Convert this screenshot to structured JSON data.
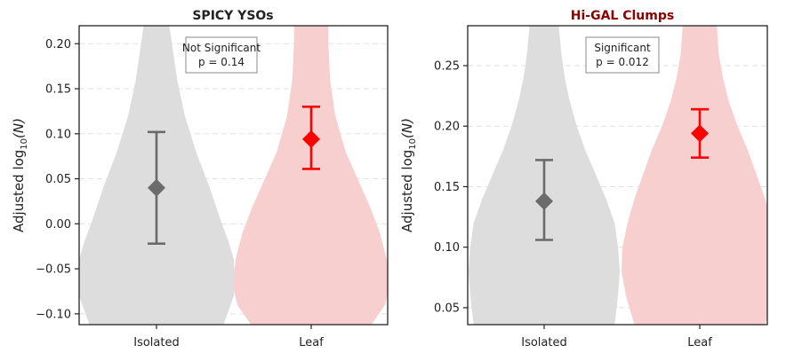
{
  "chart_data": [
    {
      "type": "violin",
      "title": "SPICY YSOs",
      "title_color": "#222222",
      "ylabel_main": "Adjusted log",
      "ylabel_sub": "10",
      "ylabel_arg": "(N)",
      "categories": [
        "Isolated",
        "Leaf"
      ],
      "ylim": [
        -0.112,
        0.22
      ],
      "yticks": [
        -0.1,
        -0.05,
        0.0,
        0.05,
        0.1,
        0.15,
        0.2
      ],
      "ytick_labels": [
        "−0.10",
        "−0.05",
        "0.00",
        "0.05",
        "0.10",
        "0.15",
        "0.20"
      ],
      "grid": true,
      "annotation": [
        "Not Significant",
        "p = 0.14"
      ],
      "series": [
        {
          "category": "Isolated",
          "color": "#dddddd",
          "marker_color": "#6b6b6b",
          "mean": 0.04,
          "ci": [
            -0.022,
            0.102
          ],
          "violin_profile": [
            [
              -0.112,
              0.39
            ],
            [
              -0.08,
              0.45
            ],
            [
              -0.06,
              0.455
            ],
            [
              -0.04,
              0.45
            ],
            [
              -0.02,
              0.42
            ],
            [
              0.0,
              0.38
            ],
            [
              0.04,
              0.31
            ],
            [
              0.08,
              0.23
            ],
            [
              0.12,
              0.165
            ],
            [
              0.16,
              0.12
            ],
            [
              0.2,
              0.09
            ],
            [
              0.22,
              0.075
            ]
          ]
        },
        {
          "category": "Leaf",
          "color": "#f8cfcf",
          "marker_color": "#ff0000",
          "mean": 0.094,
          "ci": [
            0.061,
            0.13
          ],
          "violin_profile": [
            [
              -0.112,
              0.35
            ],
            [
              -0.09,
              0.43
            ],
            [
              -0.07,
              0.455
            ],
            [
              -0.04,
              0.44
            ],
            [
              -0.01,
              0.4
            ],
            [
              0.02,
              0.34
            ],
            [
              0.05,
              0.27
            ],
            [
              0.08,
              0.2
            ],
            [
              0.12,
              0.14
            ],
            [
              0.16,
              0.11
            ],
            [
              0.2,
              0.1
            ],
            [
              0.22,
              0.1
            ]
          ]
        }
      ]
    },
    {
      "type": "violin",
      "title": "Hi-GAL Clumps",
      "title_color": "#8b0000",
      "ylabel_main": "Adjusted log",
      "ylabel_sub": "10",
      "ylabel_arg": "(N)",
      "categories": [
        "Isolated",
        "Leaf"
      ],
      "ylim": [
        0.036,
        0.283
      ],
      "yticks": [
        0.05,
        0.1,
        0.15,
        0.2,
        0.25
      ],
      "ytick_labels": [
        "0.05",
        "0.10",
        "0.15",
        "0.20",
        "0.25"
      ],
      "grid": true,
      "annotation": [
        "Significant",
        "p = 0.012"
      ],
      "series": [
        {
          "category": "Isolated",
          "color": "#dddddd",
          "marker_color": "#6b6b6b",
          "mean": 0.138,
          "ci": [
            0.106,
            0.172
          ],
          "violin_profile": [
            [
              0.036,
              0.41
            ],
            [
              0.06,
              0.43
            ],
            [
              0.08,
              0.44
            ],
            [
              0.1,
              0.43
            ],
            [
              0.12,
              0.41
            ],
            [
              0.14,
              0.36
            ],
            [
              0.16,
              0.3
            ],
            [
              0.18,
              0.24
            ],
            [
              0.2,
              0.19
            ],
            [
              0.22,
              0.15
            ],
            [
              0.24,
              0.12
            ],
            [
              0.26,
              0.1
            ],
            [
              0.283,
              0.085
            ]
          ]
        },
        {
          "category": "Leaf",
          "color": "#f8cfcf",
          "marker_color": "#ff0000",
          "mean": 0.194,
          "ci": [
            0.174,
            0.214
          ],
          "violin_profile": [
            [
              0.036,
              0.38
            ],
            [
              0.06,
              0.43
            ],
            [
              0.08,
              0.455
            ],
            [
              0.1,
              0.45
            ],
            [
              0.12,
              0.42
            ],
            [
              0.14,
              0.38
            ],
            [
              0.16,
              0.33
            ],
            [
              0.18,
              0.28
            ],
            [
              0.2,
              0.22
            ],
            [
              0.22,
              0.17
            ],
            [
              0.24,
              0.135
            ],
            [
              0.26,
              0.11
            ],
            [
              0.283,
              0.1
            ]
          ]
        }
      ]
    }
  ]
}
